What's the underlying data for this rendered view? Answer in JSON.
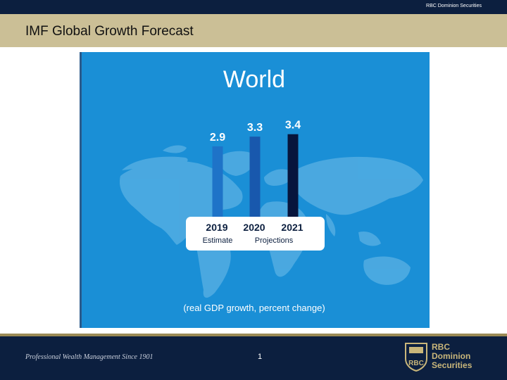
{
  "header": {
    "brand": "RBC Dominion Securities"
  },
  "slide": {
    "title": "IMF Global Growth Forecast"
  },
  "chart_data": {
    "type": "bar",
    "title": "World",
    "categories": [
      "2019",
      "2020",
      "2021"
    ],
    "values": [
      2.9,
      3.3,
      3.4
    ],
    "data_labels": [
      "2.9",
      "3.3",
      "3.4"
    ],
    "group_labels": [
      {
        "text": "Estimate",
        "categories": [
          "2019"
        ]
      },
      {
        "text": "Projections",
        "categories": [
          "2020",
          "2021"
        ]
      }
    ],
    "caption": "(real GDP growth, percent change)",
    "colors": [
      "#1e73c8",
      "#1858ad",
      "#07153d"
    ],
    "background": "#1a8fd6",
    "ylim": [
      0,
      3.6
    ]
  },
  "footer": {
    "tagline": "Professional Wealth Management Since 1901",
    "page_number": "1",
    "logo_line1": "RBC",
    "logo_line2": "Dominion",
    "logo_line3": "Securities",
    "logo_mark_text": "RBC"
  }
}
